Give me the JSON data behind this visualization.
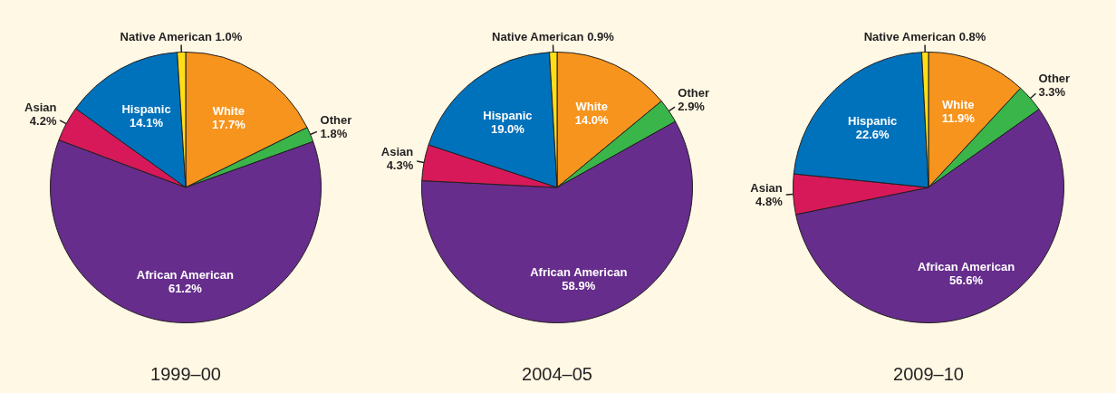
{
  "chart_data": [
    {
      "type": "pie",
      "title": "1999–00",
      "categories": [
        "White",
        "Other",
        "African American",
        "Asian",
        "Hispanic",
        "Native American"
      ],
      "values": [
        17.7,
        1.8,
        61.2,
        4.2,
        14.1,
        1.0
      ],
      "value_labels": [
        "17.7%",
        "1.8%",
        "61.2%",
        "4.2%",
        "14.1%",
        "1.0%"
      ],
      "colors": [
        "#f7941d",
        "#39b54a",
        "#662d8c",
        "#d7195a",
        "#0072bc",
        "#ffde17"
      ],
      "legend": false
    },
    {
      "type": "pie",
      "title": "2004–05",
      "categories": [
        "White",
        "Other",
        "African American",
        "Asian",
        "Hispanic",
        "Native American"
      ],
      "values": [
        14.0,
        2.9,
        58.9,
        4.3,
        19.0,
        0.9
      ],
      "value_labels": [
        "14.0%",
        "2.9%",
        "58.9%",
        "4.3%",
        "19.0%",
        "0.9%"
      ],
      "colors": [
        "#f7941d",
        "#39b54a",
        "#662d8c",
        "#d7195a",
        "#0072bc",
        "#ffde17"
      ],
      "legend": false
    },
    {
      "type": "pie",
      "title": "2009–10",
      "categories": [
        "White",
        "Other",
        "African American",
        "Asian",
        "Hispanic",
        "Native American"
      ],
      "values": [
        11.9,
        3.3,
        56.6,
        4.8,
        22.6,
        0.8
      ],
      "value_labels": [
        "11.9%",
        "3.3%",
        "56.6%",
        "4.8%",
        "22.6%",
        "0.8%"
      ],
      "colors": [
        "#f7941d",
        "#39b54a",
        "#662d8c",
        "#d7195a",
        "#0072bc",
        "#ffde17"
      ],
      "legend": false
    }
  ]
}
